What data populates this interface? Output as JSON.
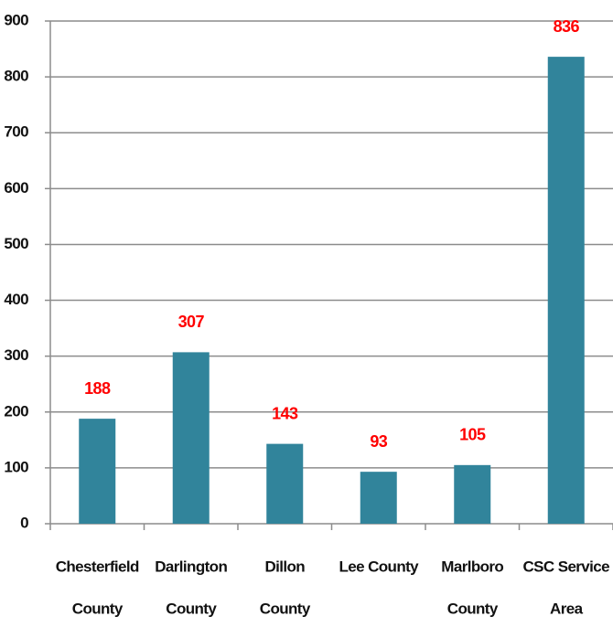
{
  "chart_data": {
    "type": "bar",
    "categories": [
      [
        "Chesterfield",
        "County"
      ],
      [
        "Darlington",
        "County"
      ],
      [
        "Dillon",
        "County"
      ],
      [
        "Lee County"
      ],
      [
        "Marlboro",
        "County"
      ],
      [
        "CSC Service",
        "Area"
      ]
    ],
    "values": [
      188,
      307,
      143,
      93,
      105,
      836
    ],
    "color": "#31849b",
    "label_color": "#ff0000",
    "ylim": [
      0,
      900
    ],
    "yticks": [
      0,
      100,
      200,
      300,
      400,
      500,
      600,
      700,
      800,
      900
    ],
    "grid": true
  }
}
